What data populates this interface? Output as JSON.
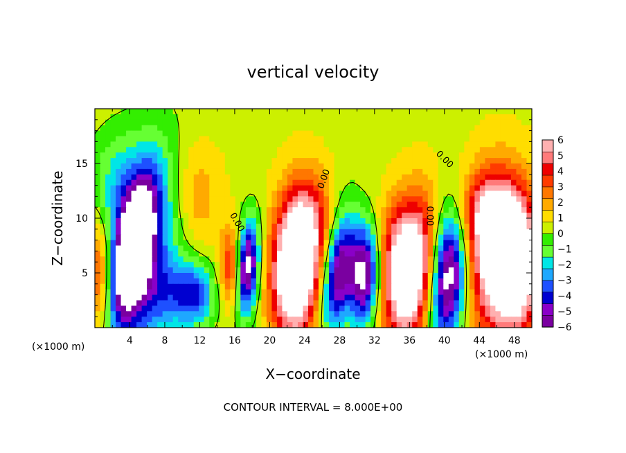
{
  "chart_data": {
    "type": "heatmap",
    "title": "vertical velocity",
    "xlabel": "X−coordinate",
    "ylabel": "Z−coordinate",
    "x_unit_left": "(×1000 m)",
    "x_unit_right": "(×1000 m)",
    "xlim": [
      0,
      50
    ],
    "ylim": [
      0,
      20
    ],
    "x_ticks": [
      4,
      8,
      12,
      16,
      20,
      24,
      28,
      32,
      36,
      40,
      44,
      48
    ],
    "x_tick_labels": [
      "4",
      "8",
      "12",
      "16",
      "20",
      "24",
      "28",
      "32",
      "36",
      "40",
      "44",
      "48"
    ],
    "y_ticks": [
      5,
      10,
      15
    ],
    "y_tick_labels": [
      "5",
      "10",
      "15"
    ],
    "colorbar": {
      "min": -6,
      "max": 6,
      "tick_values": [
        6,
        5,
        4,
        3,
        2,
        1,
        0,
        -1,
        -2,
        -3,
        -4,
        -5,
        -6
      ],
      "tick_labels": [
        "6",
        "5",
        "4",
        "3",
        "2",
        "1",
        "0",
        "−1",
        "−2",
        "−3",
        "−4",
        "−5",
        "−6"
      ],
      "colors": [
        "#7a00a0",
        "#8a00c8",
        "#0000d0",
        "#1e50ff",
        "#1ea8ff",
        "#00e6e6",
        "#66ff33",
        "#33ee00",
        "#ccf000",
        "#ffdd00",
        "#ffaa00",
        "#ff7700",
        "#ff3b00",
        "#ee0000",
        "#ff7a7a",
        "#ffb0b0"
      ]
    },
    "contour_labels": [
      "0.00",
      "0.00",
      "0.00",
      "0.00"
    ],
    "contour_interval_text": "CONTOUR INTERVAL = 8.000E+00",
    "background_value": 0.5,
    "cells": [
      {
        "x": 4.5,
        "z": 7.5,
        "sx": 1.4,
        "sz": 4.0,
        "tilt": 0.6,
        "amp": -8.0
      },
      {
        "x": 5.0,
        "z": 6.0,
        "sx": 3.0,
        "sz": 7.0,
        "tilt": 0.5,
        "amp": -4.5
      },
      {
        "x": 0.5,
        "z": 4.5,
        "sx": 1.2,
        "sz": 4.0,
        "tilt": 0.0,
        "amp": 4.0
      },
      {
        "x": 11.5,
        "z": 3.0,
        "sx": 1.6,
        "sz": 2.0,
        "tilt": 0.0,
        "amp": -3.5
      },
      {
        "x": 8.5,
        "z": 3.0,
        "sx": 2.5,
        "sz": 2.5,
        "tilt": 0.0,
        "amp": -2.0
      },
      {
        "x": 11.5,
        "z": 12.0,
        "sx": 2.0,
        "sz": 3.5,
        "tilt": 0.0,
        "amp": 1.8
      },
      {
        "x": 15.5,
        "z": 5.5,
        "sx": 0.8,
        "sz": 2.5,
        "tilt": 0.0,
        "amp": 3.5
      },
      {
        "x": 17.5,
        "z": 5.5,
        "sx": 0.9,
        "sz": 3.0,
        "tilt": 0.2,
        "amp": -7.0
      },
      {
        "x": 23.0,
        "z": 5.5,
        "sx": 1.9,
        "sz": 4.5,
        "tilt": 0.15,
        "amp": 9.5
      },
      {
        "x": 27.8,
        "z": 5.0,
        "sx": 1.2,
        "sz": 3.8,
        "tilt": 0.35,
        "amp": -6.5
      },
      {
        "x": 30.8,
        "z": 4.8,
        "sx": 1.2,
        "sz": 3.2,
        "tilt": 0.1,
        "amp": -7.0
      },
      {
        "x": 36.0,
        "z": 5.0,
        "sx": 1.9,
        "sz": 4.5,
        "tilt": 0.3,
        "amp": 8.5
      },
      {
        "x": 40.5,
        "z": 4.8,
        "sx": 1.5,
        "sz": 4.3,
        "tilt": 0.2,
        "amp": -8.0
      },
      {
        "x": 46.5,
        "z": 6.5,
        "sx": 2.8,
        "sz": 5.0,
        "tilt": 0.0,
        "amp": 7.5
      },
      {
        "x": 48.2,
        "z": 5.0,
        "sx": 1.8,
        "sz": 3.5,
        "tilt": 0.0,
        "amp": 4.0
      },
      {
        "x": 45.0,
        "z": 10.5,
        "sx": 2.5,
        "sz": 2.5,
        "tilt": 0.0,
        "amp": 3.0
      },
      {
        "x": 34.0,
        "z": 8.0,
        "sx": 1.5,
        "sz": 3.0,
        "tilt": 0.0,
        "amp": 1.5
      },
      {
        "x": 2.5,
        "z": 13.0,
        "sx": 2.5,
        "sz": 3.5,
        "tilt": 0.0,
        "amp": -1.8
      },
      {
        "x": 25.0,
        "z": 10.0,
        "sx": 2.0,
        "sz": 3.0,
        "tilt": 0.0,
        "amp": 2.0
      }
    ]
  }
}
